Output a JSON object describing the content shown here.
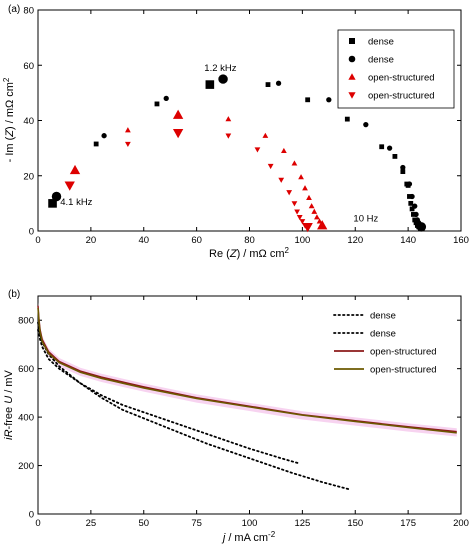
{
  "chart_data": [
    {
      "panel": "(a)",
      "type": "scatter",
      "xlabel_parts": [
        "Re (",
        "Z",
        ") / mΩ cm",
        "2"
      ],
      "ylabel_parts": [
        "- Im (",
        "Z",
        ") / mΩ cm",
        "2"
      ],
      "xlim": [
        0,
        160
      ],
      "ylim": [
        0,
        80
      ],
      "xticks": [
        0,
        20,
        40,
        60,
        80,
        100,
        120,
        140,
        160
      ],
      "yticks": [
        0,
        20,
        40,
        60,
        80
      ],
      "grid": false,
      "legend_position": "top-right",
      "annotations": [
        {
          "text": "1.2 kHz",
          "x": 69,
          "y": 58
        },
        {
          "text": "4.1 kHz",
          "x": 14.5,
          "y": 9.5
        },
        {
          "text": "10 Hz",
          "x": 124,
          "y": 3.5
        }
      ],
      "series": [
        {
          "name": "dense",
          "marker": "square",
          "color": "#000000",
          "points": [
            [
              5.5,
              10
            ],
            [
              22,
              31.5
            ],
            [
              45,
              46
            ],
            [
              65,
              53
            ],
            [
              87,
              53
            ],
            [
              102,
              47.5
            ],
            [
              117,
              40.5
            ],
            [
              130,
              30.5
            ],
            [
              135,
              27
            ],
            [
              138,
              21.5
            ],
            [
              139.5,
              17
            ],
            [
              140,
              16.5
            ],
            [
              140.5,
              12.5
            ],
            [
              141,
              10
            ],
            [
              141.5,
              8
            ],
            [
              142,
              6
            ],
            [
              142.5,
              4
            ],
            [
              143,
              3
            ],
            [
              143.5,
              2
            ],
            [
              144,
              1.5
            ]
          ],
          "large_idx": [
            0,
            3
          ]
        },
        {
          "name": "dense",
          "marker": "circle",
          "color": "#000000",
          "points": [
            [
              7,
              12.5
            ],
            [
              25,
              34.5
            ],
            [
              48.5,
              48
            ],
            [
              70,
              55
            ],
            [
              91,
              53.5
            ],
            [
              110,
              47.5
            ],
            [
              124,
              38.5
            ],
            [
              133,
              30
            ],
            [
              138,
              23
            ],
            [
              140.5,
              17
            ],
            [
              141.5,
              12.5
            ],
            [
              142.5,
              9
            ],
            [
              143,
              6
            ],
            [
              143.5,
              4
            ],
            [
              144,
              3
            ],
            [
              144.5,
              2
            ],
            [
              145,
              1.5
            ]
          ],
          "large_idx": [
            0,
            3,
            16
          ]
        },
        {
          "name": "open-structured",
          "marker": "triangle-up",
          "color": "#dd0000",
          "points": [
            [
              14,
              22
            ],
            [
              34,
              36.5
            ],
            [
              53,
              42
            ],
            [
              72,
              40.5
            ],
            [
              86,
              34.5
            ],
            [
              93,
              29
            ],
            [
              97,
              24.5
            ],
            [
              99.5,
              19.5
            ],
            [
              101,
              15.5
            ],
            [
              102.5,
              12
            ],
            [
              103.5,
              9
            ],
            [
              104.5,
              7
            ],
            [
              105.5,
              5
            ],
            [
              106.5,
              3.5
            ],
            [
              107.5,
              2
            ]
          ],
          "large_idx": [
            0,
            2,
            14
          ]
        },
        {
          "name": "open-structured",
          "marker": "triangle-down",
          "color": "#dd0000",
          "points": [
            [
              12,
              16.5
            ],
            [
              34,
              31.5
            ],
            [
              53,
              35.5
            ],
            [
              72,
              34.5
            ],
            [
              83,
              29.5
            ],
            [
              88,
              23.5
            ],
            [
              92,
              18.5
            ],
            [
              95,
              14
            ],
            [
              97,
              10
            ],
            [
              98,
              7
            ],
            [
              99,
              5
            ],
            [
              100,
              3.5
            ],
            [
              101,
              2
            ],
            [
              102,
              1.5
            ]
          ],
          "large_idx": [
            0,
            2,
            13
          ]
        }
      ]
    },
    {
      "panel": "(b)",
      "type": "line",
      "xlabel_parts": [
        "j",
        " / mA cm",
        "-2"
      ],
      "ylabel_parts": [
        "iR",
        "-free ",
        "U",
        " / mV"
      ],
      "xlim": [
        0,
        200
      ],
      "ylim": [
        0,
        900
      ],
      "xticks": [
        0,
        25,
        50,
        75,
        100,
        125,
        150,
        175,
        200
      ],
      "yticks": [
        0,
        200,
        400,
        600,
        800
      ],
      "grid": false,
      "legend_position": "top-right",
      "series": [
        {
          "name": "dense",
          "style": "dotted",
          "color": "#000000",
          "x": [
            0,
            1,
            2,
            5,
            10,
            20,
            30,
            40,
            60,
            80,
            100,
            120,
            135,
            148
          ],
          "y": [
            790,
            740,
            710,
            660,
            610,
            540,
            480,
            430,
            360,
            290,
            230,
            170,
            130,
            100
          ]
        },
        {
          "name": "dense",
          "style": "dotted",
          "color": "#000000",
          "x": [
            0,
            1,
            2,
            5,
            10,
            20,
            30,
            40,
            60,
            80,
            100,
            115,
            123
          ],
          "y": [
            760,
            720,
            690,
            640,
            600,
            540,
            490,
            450,
            390,
            330,
            270,
            230,
            210
          ]
        },
        {
          "name": "open-structured",
          "style": "solid",
          "color": "#8b1a1a",
          "x": [
            0,
            0.5,
            1,
            2,
            5,
            10,
            20,
            30,
            50,
            75,
            100,
            125,
            150,
            175,
            198
          ],
          "y": [
            860,
            800,
            760,
            720,
            670,
            630,
            590,
            565,
            525,
            480,
            445,
            410,
            385,
            360,
            340
          ]
        },
        {
          "name": "open-structured",
          "style": "solid",
          "color": "#6b5a00",
          "x": [
            0,
            0.5,
            1,
            2,
            5,
            10,
            20,
            30,
            50,
            75,
            100,
            125,
            150,
            175,
            198
          ],
          "y": [
            850,
            790,
            750,
            712,
            663,
            625,
            585,
            560,
            520,
            477,
            442,
            408,
            382,
            357,
            335
          ]
        }
      ]
    }
  ]
}
